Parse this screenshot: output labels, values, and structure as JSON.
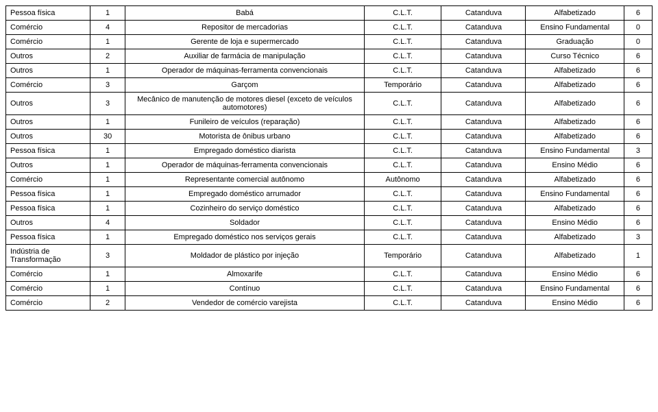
{
  "table": {
    "column_widths_pct": [
      12,
      5,
      34,
      11,
      12,
      14,
      4
    ],
    "border_color": "#000000",
    "background_color": "#ffffff",
    "font_size_pt": 11,
    "text_color": "#000000",
    "alignments": [
      "left",
      "center",
      "center",
      "center",
      "center",
      "center",
      "center"
    ],
    "rows": [
      [
        "Pessoa física",
        "1",
        "Babá",
        "C.L.T.",
        "Catanduva",
        "Alfabetizado",
        "6"
      ],
      [
        "Comércio",
        "4",
        "Repositor de mercadorias",
        "C.L.T.",
        "Catanduva",
        "Ensino Fundamental",
        "0"
      ],
      [
        "Comércio",
        "1",
        "Gerente de loja e supermercado",
        "C.L.T.",
        "Catanduva",
        "Graduação",
        "0"
      ],
      [
        "Outros",
        "2",
        "Auxiliar de farmácia de manipulação",
        "C.L.T.",
        "Catanduva",
        "Curso Técnico",
        "6"
      ],
      [
        "Outros",
        "1",
        "Operador de máquinas-ferramenta convencionais",
        "C.L.T.",
        "Catanduva",
        "Alfabetizado",
        "6"
      ],
      [
        "Comércio",
        "3",
        "Garçom",
        "Temporário",
        "Catanduva",
        "Alfabetizado",
        "6"
      ],
      [
        "Outros",
        "3",
        "Mecânico de manutenção de motores diesel (exceto de veículos automotores)",
        "C.L.T.",
        "Catanduva",
        "Alfabetizado",
        "6"
      ],
      [
        "Outros",
        "1",
        "Funileiro de veículos (reparação)",
        "C.L.T.",
        "Catanduva",
        "Alfabetizado",
        "6"
      ],
      [
        "Outros",
        "30",
        "Motorista de ônibus urbano",
        "C.L.T.",
        "Catanduva",
        "Alfabetizado",
        "6"
      ],
      [
        "Pessoa física",
        "1",
        "Empregado doméstico diarista",
        "C.L.T.",
        "Catanduva",
        "Ensino Fundamental",
        "3"
      ],
      [
        "Outros",
        "1",
        "Operador de máquinas-ferramenta convencionais",
        "C.L.T.",
        "Catanduva",
        "Ensino Médio",
        "6"
      ],
      [
        "Comércio",
        "1",
        "Representante comercial autônomo",
        "Autônomo",
        "Catanduva",
        "Alfabetizado",
        "6"
      ],
      [
        "Pessoa física",
        "1",
        "Empregado doméstico  arrumador",
        "C.L.T.",
        "Catanduva",
        "Ensino Fundamental",
        "6"
      ],
      [
        "Pessoa física",
        "1",
        "Cozinheiro do serviço doméstico",
        "C.L.T.",
        "Catanduva",
        "Alfabetizado",
        "6"
      ],
      [
        "Outros",
        "4",
        "Soldador",
        "C.L.T.",
        "Catanduva",
        "Ensino Médio",
        "6"
      ],
      [
        "Pessoa física",
        "1",
        "Empregado  doméstico  nos serviços gerais",
        "C.L.T.",
        "Catanduva",
        "Alfabetizado",
        "3"
      ],
      [
        "Indústria de Transformação",
        "3",
        "Moldador de plástico por injeção",
        "Temporário",
        "Catanduva",
        "Alfabetizado",
        "1"
      ],
      [
        "Comércio",
        "1",
        "Almoxarife",
        "C.L.T.",
        "Catanduva",
        "Ensino Médio",
        "6"
      ],
      [
        "Comércio",
        "1",
        "Contínuo",
        "C.L.T.",
        "Catanduva",
        "Ensino Fundamental",
        "6"
      ],
      [
        "Comércio",
        "2",
        "Vendedor de comércio varejista",
        "C.L.T.",
        "Catanduva",
        "Ensino Médio",
        "6"
      ]
    ]
  }
}
